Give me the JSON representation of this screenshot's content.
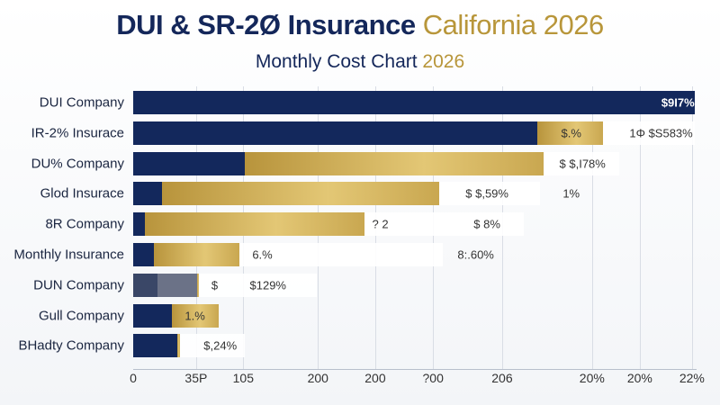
{
  "title": {
    "main": "DUI & SR-2Ø Insurance",
    "accent": "California 2026"
  },
  "subtitle": {
    "main": "Monthly Cost Chart",
    "accent": "2026"
  },
  "colors": {
    "navy": "#13285c",
    "gold": "#c4a24a",
    "slate": "#3a4767",
    "gray": "#6b7287"
  },
  "chart_data": {
    "type": "bar",
    "orientation": "horizontal-stacked",
    "xlim": [
      0,
      100
    ],
    "x_tick_labels": [
      "0",
      "35P",
      "105",
      "200",
      "200",
      "?00",
      "206",
      "20%",
      "20%",
      "22%"
    ],
    "categories": [
      "DUI Company",
      "IR-2% Insurace",
      "DU% Company",
      "Glod Insurace",
      "8R Company",
      "Monthly Insurance",
      "DUN Company",
      "Gull Company",
      "BHadty Company"
    ],
    "series": [
      {
        "name": "navy",
        "values": [
          100,
          72,
          19.9,
          5.1,
          2.1,
          3.7,
          4.3,
          6.9,
          7.9
        ]
      },
      {
        "name": "gold",
        "values": [
          0,
          11.7,
          53.2,
          49.4,
          39.1,
          15.2,
          0.3,
          8.3,
          0.4
        ]
      },
      {
        "name": "gray",
        "values": [
          0,
          0,
          0,
          0,
          0,
          0,
          7.1,
          0,
          0
        ]
      },
      {
        "name": "label-box",
        "values": [
          0,
          16.3,
          13.4,
          17.9,
          28.4,
          36.2,
          21,
          0,
          11.6
        ]
      }
    ],
    "data_labels": [
      [
        {
          "t": "$9I7%",
          "at": 97,
          "c": "#fff",
          "b": 1
        }
      ],
      [
        {
          "t": "$.%",
          "at": 78
        },
        {
          "t": "1Φ  $S583%",
          "at": 94
        }
      ],
      [
        {
          "t": "$  $,I78%",
          "at": 80
        }
      ],
      [
        {
          "t": "$   $,59%",
          "at": 63
        },
        {
          "t": "1%",
          "at": 78
        }
      ],
      [
        {
          "t": "? 2",
          "at": 44
        },
        {
          "t": "$ 8%",
          "at": 63
        }
      ],
      [
        {
          "t": "6.%",
          "at": 23
        },
        {
          "t": "8:.60%",
          "at": 61
        }
      ],
      [
        {
          "t": "$",
          "at": 14.5
        },
        {
          "t": "$129%",
          "at": 24
        }
      ],
      [
        {
          "t": "1.%",
          "at": 11
        }
      ],
      [
        {
          "t": "$,24%",
          "at": 15.5
        }
      ]
    ]
  }
}
